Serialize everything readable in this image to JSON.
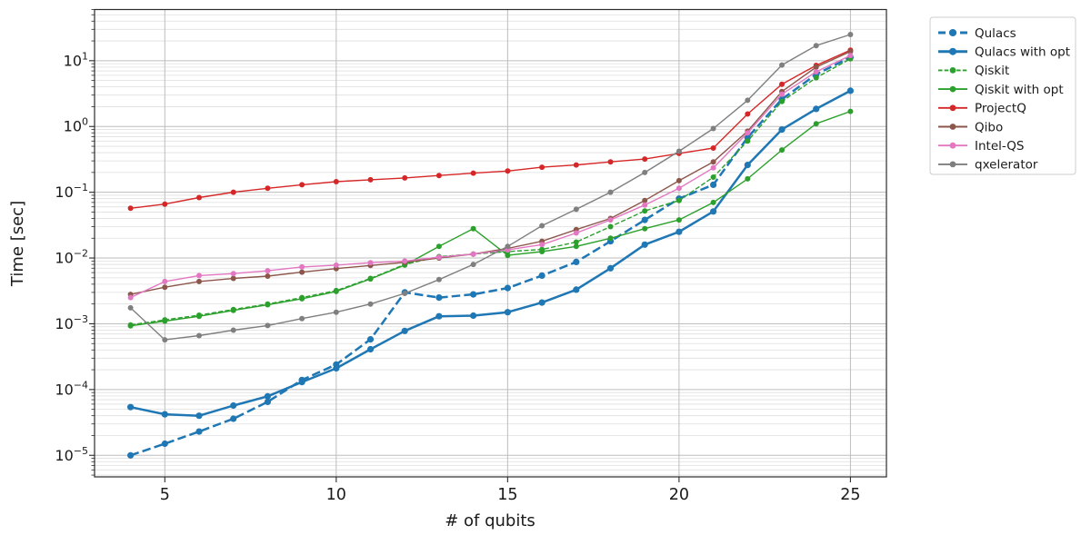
{
  "chart_data": {
    "type": "line",
    "title": "",
    "xlabel": "# of qubits",
    "ylabel": "Time [sec]",
    "x_axis": "linear",
    "y_axis": "log",
    "x": [
      4,
      5,
      6,
      7,
      8,
      9,
      10,
      11,
      12,
      13,
      14,
      15,
      16,
      17,
      18,
      19,
      20,
      21,
      22,
      23,
      24,
      25
    ],
    "x_ticks": [
      5,
      10,
      15,
      20,
      25
    ],
    "y_tick_exponents": [
      -5,
      -4,
      -3,
      -2,
      -1,
      0,
      1
    ],
    "xlim": [
      2.95,
      26.05
    ],
    "ylim": [
      4.7e-06,
      60
    ],
    "grid": "major-and-minor",
    "legend_position": "outside-upper-right",
    "series": [
      {
        "name": "Qulacs",
        "color": "#1f77b4",
        "dash": "dashed",
        "line_width": 2.5,
        "marker_size": 3.6,
        "values": [
          1e-05,
          1.5e-05,
          2.3e-05,
          3.6e-05,
          6.5e-05,
          0.00014,
          0.00024,
          0.00058,
          0.003,
          0.0025,
          0.0028,
          0.0035,
          0.0054,
          0.0087,
          0.018,
          0.038,
          0.08,
          0.13,
          0.68,
          2.6,
          6.2,
          11.3
        ]
      },
      {
        "name": "Qulacs with opt",
        "color": "#1f77b4",
        "dash": "solid",
        "line_width": 2.5,
        "marker_size": 3.6,
        "values": [
          5.4e-05,
          4.2e-05,
          4e-05,
          5.7e-05,
          7.9e-05,
          0.00013,
          0.00021,
          0.00041,
          0.00078,
          0.0013,
          0.00133,
          0.0015,
          0.0021,
          0.0033,
          0.007,
          0.016,
          0.025,
          0.051,
          0.26,
          0.9,
          1.85,
          3.5
        ]
      },
      {
        "name": "Qiskit",
        "color": "#2ca02c",
        "dash": "dashed",
        "line_width": 1.4,
        "marker_size": 3.0,
        "values": [
          0.00096,
          0.00115,
          0.00135,
          0.00165,
          0.002,
          0.0025,
          0.0032,
          0.0049,
          0.008,
          0.0105,
          0.0115,
          0.0125,
          0.0135,
          0.0175,
          0.03,
          0.052,
          0.075,
          0.17,
          0.6,
          2.4,
          5.5,
          10.7
        ]
      },
      {
        "name": "Qiskit with opt",
        "color": "#2ca02c",
        "dash": "solid",
        "line_width": 1.4,
        "marker_size": 3.0,
        "values": [
          0.00093,
          0.0011,
          0.0013,
          0.0016,
          0.00195,
          0.0024,
          0.0031,
          0.0048,
          0.0078,
          0.015,
          0.028,
          0.011,
          0.0125,
          0.015,
          0.02,
          0.028,
          0.038,
          0.07,
          0.16,
          0.44,
          1.1,
          1.7
        ]
      },
      {
        "name": "ProjectQ",
        "color": "#d62728",
        "dash": "solid",
        "line_width": 1.4,
        "marker_size": 3.0,
        "values": [
          0.057,
          0.066,
          0.083,
          0.1,
          0.115,
          0.13,
          0.145,
          0.155,
          0.165,
          0.18,
          0.195,
          0.21,
          0.24,
          0.26,
          0.29,
          0.32,
          0.39,
          0.47,
          1.55,
          4.4,
          8.5,
          14.5
        ]
      },
      {
        "name": "Qibo",
        "color": "#8c564b",
        "dash": "solid",
        "line_width": 1.4,
        "marker_size": 3.0,
        "values": [
          0.0028,
          0.0036,
          0.0044,
          0.0049,
          0.0053,
          0.0061,
          0.0069,
          0.0077,
          0.0086,
          0.01,
          0.0115,
          0.014,
          0.018,
          0.027,
          0.04,
          0.075,
          0.15,
          0.29,
          0.85,
          3.4,
          8.0,
          13.8
        ]
      },
      {
        "name": "Intel-QS",
        "color": "#e377c2",
        "dash": "solid",
        "line_width": 1.4,
        "marker_size": 3.0,
        "values": [
          0.0025,
          0.0044,
          0.0054,
          0.0058,
          0.0064,
          0.0073,
          0.0078,
          0.0085,
          0.009,
          0.0103,
          0.0115,
          0.0133,
          0.016,
          0.024,
          0.038,
          0.064,
          0.115,
          0.235,
          0.8,
          3.1,
          6.8,
          12.0
        ]
      },
      {
        "name": "qxelerator",
        "color": "#7f7f7f",
        "dash": "solid",
        "line_width": 1.4,
        "marker_size": 3.0,
        "values": [
          0.00175,
          0.00057,
          0.00066,
          0.0008,
          0.00094,
          0.0012,
          0.0015,
          0.002,
          0.0029,
          0.0047,
          0.008,
          0.015,
          0.031,
          0.055,
          0.1,
          0.2,
          0.42,
          0.93,
          2.5,
          8.6,
          17.0,
          25.0
        ]
      }
    ],
    "colors": {
      "blue": "#1f77b4",
      "green": "#2ca02c",
      "red": "#d62728",
      "brown": "#8c564b",
      "pink": "#e377c2",
      "gray": "#7f7f7f",
      "grid_major": "#bdbdbd",
      "grid_minor": "#dfdfdf",
      "spine": "#2b2b2b",
      "legend_border": "#cccccc"
    }
  }
}
